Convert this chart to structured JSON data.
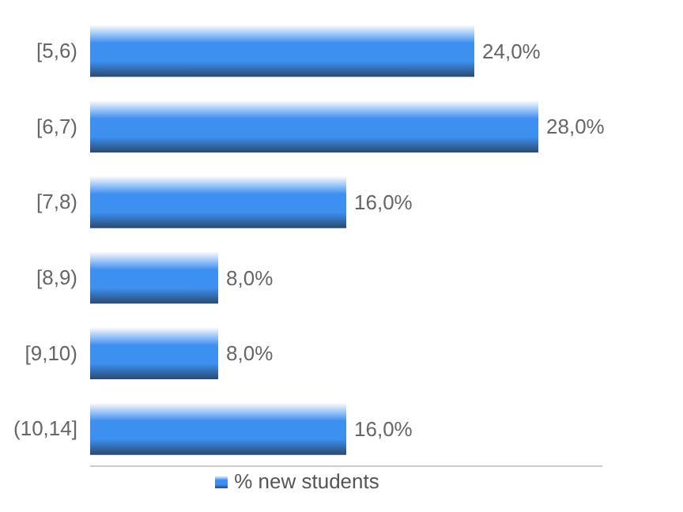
{
  "chart_data": {
    "type": "bar",
    "orientation": "horizontal",
    "categories": [
      "[5,6)",
      "[6,7)",
      "[7,8)",
      "[8,9)",
      "[9,10)",
      "(10,14]"
    ],
    "series": [
      {
        "name": "% new students",
        "color": "#3d8ff0",
        "values": [
          24,
          28,
          16,
          8,
          8,
          16
        ],
        "value_labels": [
          "24,0%",
          "28,0%",
          "16,0%",
          "8,0%",
          "8,0%",
          "16,0%"
        ]
      }
    ],
    "xlim": [
      0,
      32
    ],
    "tick_labels": "y",
    "legend": "bottom"
  }
}
